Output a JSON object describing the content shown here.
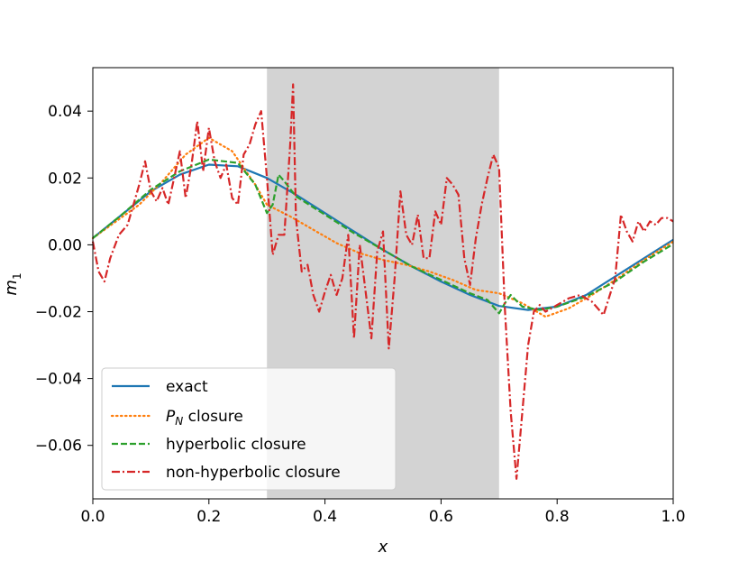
{
  "chart_data": {
    "type": "line",
    "title": "",
    "xlabel": "x",
    "ylabel_main": "m",
    "ylabel_sub": "1",
    "xlim": [
      0.0,
      1.0
    ],
    "ylim": [
      -0.076,
      0.053
    ],
    "grid": false,
    "legend_position": "lower-left",
    "shaded_region": {
      "x_start": 0.3,
      "x_end": 0.7,
      "color": "#d3d3d3"
    },
    "x_ticks": [
      0.0,
      0.2,
      0.4,
      0.6,
      0.8,
      1.0
    ],
    "x_tick_labels": [
      "0.0",
      "0.2",
      "0.4",
      "0.6",
      "0.8",
      "1.0"
    ],
    "y_ticks": [
      0.04,
      0.02,
      0.0,
      -0.02,
      -0.04,
      -0.06
    ],
    "y_tick_labels": [
      "0.04",
      "0.02",
      "0.00",
      "−0.02",
      "−0.04",
      "−0.06"
    ],
    "series": [
      {
        "name": "exact",
        "color": "#1f77b4",
        "style": "solid",
        "x": [
          0.0,
          0.05,
          0.1,
          0.15,
          0.2,
          0.25,
          0.3,
          0.35,
          0.4,
          0.45,
          0.5,
          0.55,
          0.6,
          0.65,
          0.7,
          0.75,
          0.8,
          0.85,
          0.9,
          0.95,
          1.0
        ],
        "y": [
          0.002,
          0.009,
          0.016,
          0.021,
          0.024,
          0.0235,
          0.02,
          0.015,
          0.0095,
          0.004,
          -0.0015,
          -0.0065,
          -0.011,
          -0.015,
          -0.0183,
          -0.0195,
          -0.0185,
          -0.015,
          -0.0095,
          -0.004,
          0.0015
        ]
      },
      {
        "name": "P_N closure",
        "name_main": "P",
        "name_sub": "N",
        "name_rest": " closure",
        "color": "#ff7f0e",
        "style": "dotted",
        "x": [
          0.0,
          0.04,
          0.08,
          0.12,
          0.16,
          0.2,
          0.24,
          0.28,
          0.3,
          0.34,
          0.38,
          0.42,
          0.46,
          0.5,
          0.54,
          0.58,
          0.62,
          0.66,
          0.7,
          0.74,
          0.78,
          0.82,
          0.86,
          0.9,
          0.95,
          1.0
        ],
        "y": [
          0.002,
          0.007,
          0.012,
          0.019,
          0.027,
          0.032,
          0.028,
          0.018,
          0.012,
          0.0085,
          0.0045,
          0.0005,
          -0.0025,
          -0.0045,
          -0.006,
          -0.008,
          -0.0105,
          -0.0135,
          -0.0145,
          -0.0175,
          -0.0215,
          -0.019,
          -0.015,
          -0.0105,
          -0.0045,
          0.001
        ]
      },
      {
        "name": "hyperbolic closure",
        "color": "#2ca02c",
        "style": "dashed",
        "x": [
          0.0,
          0.05,
          0.1,
          0.15,
          0.2,
          0.25,
          0.28,
          0.3,
          0.31,
          0.32,
          0.33,
          0.35,
          0.4,
          0.45,
          0.5,
          0.55,
          0.6,
          0.65,
          0.68,
          0.7,
          0.71,
          0.72,
          0.74,
          0.77,
          0.8,
          0.85,
          0.9,
          0.95,
          1.0
        ],
        "y": [
          0.002,
          0.009,
          0.0165,
          0.022,
          0.0255,
          0.0245,
          0.018,
          0.0095,
          0.012,
          0.021,
          0.019,
          0.0145,
          0.009,
          0.0035,
          -0.0015,
          -0.0065,
          -0.0105,
          -0.0145,
          -0.0165,
          -0.0205,
          -0.0175,
          -0.015,
          -0.0185,
          -0.0195,
          -0.0185,
          -0.0155,
          -0.011,
          -0.005,
          0.0002
        ]
      },
      {
        "name": "non-hyperbolic closure",
        "color": "#d62728",
        "style": "dashdot",
        "x": [
          0.0,
          0.01,
          0.02,
          0.03,
          0.045,
          0.06,
          0.07,
          0.08,
          0.09,
          0.1,
          0.11,
          0.12,
          0.13,
          0.14,
          0.15,
          0.16,
          0.17,
          0.18,
          0.19,
          0.2,
          0.21,
          0.22,
          0.23,
          0.24,
          0.25,
          0.26,
          0.27,
          0.28,
          0.29,
          0.3,
          0.31,
          0.32,
          0.33,
          0.34,
          0.345,
          0.35,
          0.36,
          0.37,
          0.38,
          0.39,
          0.4,
          0.41,
          0.42,
          0.43,
          0.44,
          0.45,
          0.46,
          0.47,
          0.48,
          0.49,
          0.5,
          0.51,
          0.52,
          0.53,
          0.54,
          0.55,
          0.56,
          0.57,
          0.58,
          0.59,
          0.6,
          0.61,
          0.62,
          0.63,
          0.64,
          0.65,
          0.66,
          0.67,
          0.68,
          0.69,
          0.7,
          0.71,
          0.72,
          0.73,
          0.74,
          0.75,
          0.76,
          0.77,
          0.78,
          0.79,
          0.8,
          0.82,
          0.84,
          0.86,
          0.88,
          0.9,
          0.91,
          0.92,
          0.93,
          0.94,
          0.95,
          0.96,
          0.97,
          0.98,
          0.99,
          1.0
        ],
        "y": [
          0.001,
          -0.008,
          -0.011,
          -0.004,
          0.003,
          0.006,
          0.012,
          0.018,
          0.025,
          0.016,
          0.013,
          0.017,
          0.012,
          0.02,
          0.028,
          0.014,
          0.024,
          0.037,
          0.022,
          0.035,
          0.025,
          0.02,
          0.024,
          0.014,
          0.012,
          0.027,
          0.03,
          0.036,
          0.04,
          0.02,
          -0.003,
          0.003,
          0.003,
          0.03,
          0.048,
          0.008,
          -0.008,
          -0.006,
          -0.015,
          -0.02,
          -0.014,
          -0.009,
          -0.015,
          -0.01,
          0.003,
          -0.028,
          0.0,
          -0.014,
          -0.028,
          -0.002,
          0.004,
          -0.031,
          -0.01,
          0.016,
          0.003,
          0.0,
          0.009,
          -0.004,
          -0.004,
          0.01,
          0.006,
          0.02,
          0.018,
          0.015,
          -0.004,
          -0.012,
          0.002,
          0.012,
          0.02,
          0.027,
          0.023,
          -0.019,
          -0.05,
          -0.07,
          -0.05,
          -0.03,
          -0.02,
          -0.018,
          -0.02,
          -0.019,
          -0.018,
          -0.016,
          -0.015,
          -0.017,
          -0.021,
          -0.01,
          0.009,
          0.004,
          0.001,
          0.007,
          0.004,
          0.007,
          0.006,
          0.008,
          0.008,
          0.007
        ]
      }
    ]
  }
}
